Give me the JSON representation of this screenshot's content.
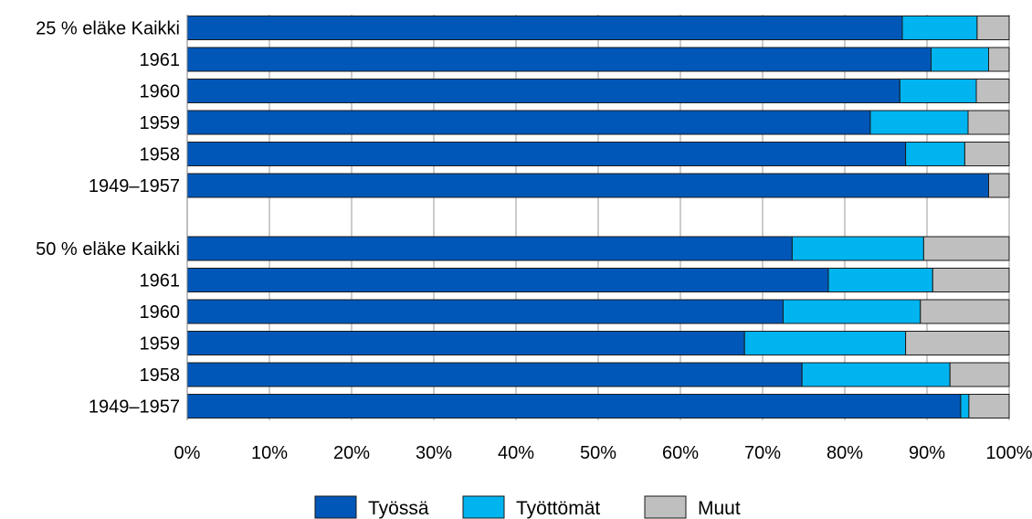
{
  "chart_data": {
    "type": "bar",
    "orientation": "horizontal",
    "stacked": "percent",
    "categories": [
      "25 % eläke Kaikki",
      "1961",
      "1960",
      "1959",
      "1958",
      "1949–1957",
      "50 % eläke Kaikki",
      "1961",
      "1960",
      "1959",
      "1958",
      "1949–1957"
    ],
    "groups": [
      {
        "label": "25 % eläke Kaikki",
        "start": 0,
        "count": 6
      },
      {
        "label": "50 % eläke Kaikki",
        "start": 6,
        "count": 6
      }
    ],
    "series": [
      {
        "name": "Työssä",
        "color": "#0057b8",
        "values": [
          87.0,
          90.5,
          86.7,
          83.1,
          87.4,
          97.5,
          73.6,
          78.0,
          72.5,
          67.8,
          74.8,
          94.1
        ]
      },
      {
        "name": "Työttömät",
        "color": "#00b4f0",
        "values": [
          9.1,
          7.0,
          9.3,
          11.9,
          7.2,
          0.0,
          16.0,
          12.7,
          16.7,
          19.6,
          18.0,
          1.0
        ]
      },
      {
        "name": "Muut",
        "color": "#bfbfbf",
        "values": [
          3.9,
          2.5,
          4.0,
          5.0,
          5.4,
          2.5,
          10.4,
          9.3,
          10.8,
          12.6,
          7.2,
          4.9
        ]
      }
    ],
    "xlim": [
      0,
      100
    ],
    "xticks": [
      "0%",
      "10%",
      "20%",
      "30%",
      "40%",
      "50%",
      "60%",
      "70%",
      "80%",
      "90%",
      "100%"
    ],
    "grid": "vertical",
    "legend": "bottom"
  }
}
